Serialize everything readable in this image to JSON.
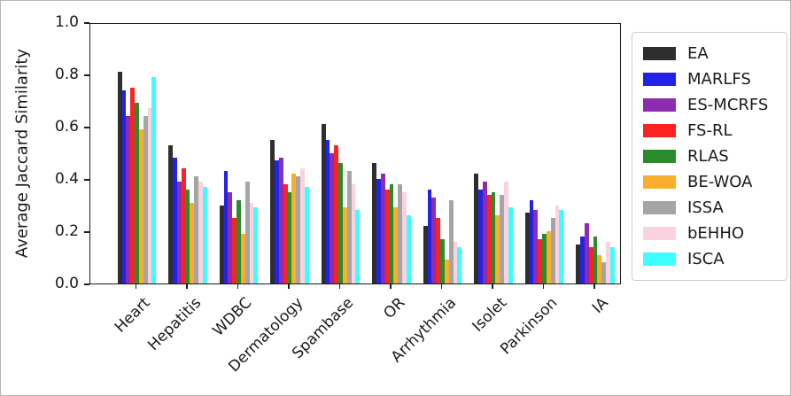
{
  "chart_data": {
    "type": "bar",
    "title": "",
    "xlabel": "",
    "ylabel": "Average Jaccard Similarity",
    "ylim": [
      0.0,
      1.0
    ],
    "yticks": [
      "0.0",
      "0.2",
      "0.4",
      "0.6",
      "0.8",
      "1.0"
    ],
    "grid": false,
    "legend_position": "outside-right",
    "categories": [
      "Heart",
      "Hepatitis",
      "WDBC",
      "Dermatology",
      "Spambase",
      "OR",
      "Arrhythmia",
      "Isolet",
      "Parkinson",
      "IA"
    ],
    "series": [
      {
        "name": "EA",
        "color": "#2e2e2e",
        "values": [
          0.81,
          0.53,
          0.3,
          0.55,
          0.61,
          0.46,
          0.22,
          0.42,
          0.27,
          0.15
        ]
      },
      {
        "name": "MARLFS",
        "color": "#2322e8",
        "values": [
          0.74,
          0.48,
          0.43,
          0.47,
          0.55,
          0.4,
          0.36,
          0.36,
          0.32,
          0.18
        ]
      },
      {
        "name": "ES-MCRFS",
        "color": "#8c2caf",
        "values": [
          0.64,
          0.39,
          0.35,
          0.48,
          0.5,
          0.42,
          0.33,
          0.39,
          0.28,
          0.23
        ]
      },
      {
        "name": "FS-RL",
        "color": "#fb2222",
        "values": [
          0.75,
          0.44,
          0.25,
          0.38,
          0.53,
          0.36,
          0.25,
          0.34,
          0.17,
          0.14
        ]
      },
      {
        "name": "RLAS",
        "color": "#2b8a2b",
        "values": [
          0.69,
          0.36,
          0.32,
          0.35,
          0.46,
          0.38,
          0.17,
          0.35,
          0.19,
          0.18
        ]
      },
      {
        "name": "BE-WOA",
        "color": "#f9ae2d",
        "values": [
          0.59,
          0.31,
          0.19,
          0.42,
          0.29,
          0.29,
          0.09,
          0.26,
          0.2,
          0.11
        ]
      },
      {
        "name": "ISSA",
        "color": "#a5a5a5",
        "values": [
          0.64,
          0.41,
          0.39,
          0.41,
          0.43,
          0.38,
          0.32,
          0.34,
          0.25,
          0.08
        ]
      },
      {
        "name": "bEHHO",
        "color": "#fbd2de",
        "values": [
          0.67,
          0.39,
          0.31,
          0.44,
          0.38,
          0.35,
          0.16,
          0.39,
          0.3,
          0.16
        ]
      },
      {
        "name": "ISCA",
        "color": "#3dffff",
        "values": [
          0.79,
          0.37,
          0.29,
          0.37,
          0.28,
          0.26,
          0.14,
          0.29,
          0.28,
          0.14
        ]
      }
    ]
  }
}
